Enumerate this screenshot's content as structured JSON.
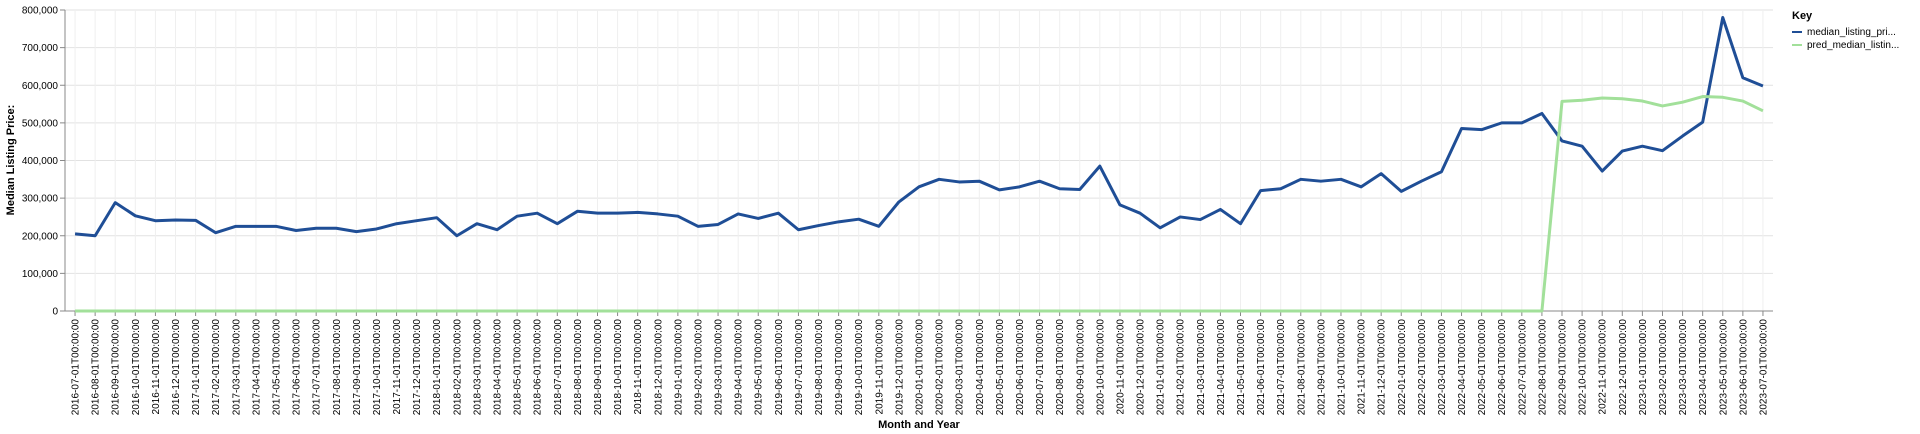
{
  "chart_data": {
    "type": "line",
    "xlabel": "Month and Year",
    "ylabel": "Median Listing Price:",
    "ylim": [
      0,
      800000
    ],
    "yticks": [
      "0",
      "100,000",
      "200,000",
      "300,000",
      "400,000",
      "500,000",
      "600,000",
      "700,000",
      "800,000"
    ],
    "grid": true,
    "legend": {
      "title": "Key",
      "placement": "right",
      "entries": [
        "median_listing_pri...",
        "pred_median_listin..."
      ]
    },
    "x": [
      "2016-07-01T00:00:00",
      "2016-08-01T00:00:00",
      "2016-09-01T00:00:00",
      "2016-10-01T00:00:00",
      "2016-11-01T00:00:00",
      "2016-12-01T00:00:00",
      "2017-01-01T00:00:00",
      "2017-02-01T00:00:00",
      "2017-03-01T00:00:00",
      "2017-04-01T00:00:00",
      "2017-05-01T00:00:00",
      "2017-06-01T00:00:00",
      "2017-07-01T00:00:00",
      "2017-08-01T00:00:00",
      "2017-09-01T00:00:00",
      "2017-10-01T00:00:00",
      "2017-11-01T00:00:00",
      "2017-12-01T00:00:00",
      "2018-01-01T00:00:00",
      "2018-02-01T00:00:00",
      "2018-03-01T00:00:00",
      "2018-04-01T00:00:00",
      "2018-05-01T00:00:00",
      "2018-06-01T00:00:00",
      "2018-07-01T00:00:00",
      "2018-08-01T00:00:00",
      "2018-09-01T00:00:00",
      "2018-10-01T00:00:00",
      "2018-11-01T00:00:00",
      "2018-12-01T00:00:00",
      "2019-01-01T00:00:00",
      "2019-02-01T00:00:00",
      "2019-03-01T00:00:00",
      "2019-04-01T00:00:00",
      "2019-05-01T00:00:00",
      "2019-06-01T00:00:00",
      "2019-07-01T00:00:00",
      "2019-08-01T00:00:00",
      "2019-09-01T00:00:00",
      "2019-10-01T00:00:00",
      "2019-11-01T00:00:00",
      "2019-12-01T00:00:00",
      "2020-01-01T00:00:00",
      "2020-02-01T00:00:00",
      "2020-03-01T00:00:00",
      "2020-04-01T00:00:00",
      "2020-05-01T00:00:00",
      "2020-06-01T00:00:00",
      "2020-07-01T00:00:00",
      "2020-08-01T00:00:00",
      "2020-09-01T00:00:00",
      "2020-10-01T00:00:00",
      "2020-11-01T00:00:00",
      "2020-12-01T00:00:00",
      "2021-01-01T00:00:00",
      "2021-02-01T00:00:00",
      "2021-03-01T00:00:00",
      "2021-04-01T00:00:00",
      "2021-05-01T00:00:00",
      "2021-06-01T00:00:00",
      "2021-07-01T00:00:00",
      "2021-08-01T00:00:00",
      "2021-09-01T00:00:00",
      "2021-10-01T00:00:00",
      "2021-11-01T00:00:00",
      "2021-12-01T00:00:00",
      "2022-01-01T00:00:00",
      "2022-02-01T00:00:00",
      "2022-03-01T00:00:00",
      "2022-04-01T00:00:00",
      "2022-05-01T00:00:00",
      "2022-06-01T00:00:00",
      "2022-07-01T00:00:00",
      "2022-08-01T00:00:00",
      "2022-09-01T00:00:00",
      "2022-10-01T00:00:00",
      "2022-11-01T00:00:00",
      "2022-12-01T00:00:00",
      "2023-01-01T00:00:00",
      "2023-02-01T00:00:00",
      "2023-03-01T00:00:00",
      "2023-04-01T00:00:00",
      "2023-05-01T00:00:00",
      "2023-06-01T00:00:00",
      "2023-07-01T00:00:00"
    ],
    "series": [
      {
        "name": "median_listing_pri...",
        "color": "#1f4e96",
        "values": [
          205000,
          200000,
          288000,
          253000,
          240000,
          242000,
          241000,
          208000,
          225000,
          225000,
          225000,
          214000,
          220000,
          220000,
          211000,
          218000,
          232000,
          240000,
          248000,
          200000,
          232000,
          216000,
          252000,
          260000,
          232000,
          265000,
          260000,
          260000,
          262000,
          258000,
          252000,
          225000,
          230000,
          258000,
          246000,
          260000,
          216000,
          227000,
          237000,
          244000,
          225000,
          290000,
          330000,
          350000,
          343000,
          345000,
          322000,
          330000,
          345000,
          325000,
          323000,
          385000,
          282000,
          260000,
          221000,
          250000,
          243000,
          270000,
          232000,
          320000,
          325000,
          350000,
          345000,
          350000,
          330000,
          365000,
          318000,
          345000,
          370000,
          485000,
          482000,
          500000,
          500000,
          525000,
          452000,
          438000,
          372000,
          425000,
          438000,
          426000,
          465000,
          502000,
          780000,
          620000,
          598000
        ]
      },
      {
        "name": "pred_median_listin...",
        "color": "#a2e09a",
        "values": [
          0,
          0,
          0,
          0,
          0,
          0,
          0,
          0,
          0,
          0,
          0,
          0,
          0,
          0,
          0,
          0,
          0,
          0,
          0,
          0,
          0,
          0,
          0,
          0,
          0,
          0,
          0,
          0,
          0,
          0,
          0,
          0,
          0,
          0,
          0,
          0,
          0,
          0,
          0,
          0,
          0,
          0,
          0,
          0,
          0,
          0,
          0,
          0,
          0,
          0,
          0,
          0,
          0,
          0,
          0,
          0,
          0,
          0,
          0,
          0,
          0,
          0,
          0,
          0,
          0,
          0,
          0,
          0,
          0,
          0,
          0,
          0,
          0,
          0,
          557000,
          560000,
          566000,
          564000,
          558000,
          545000,
          555000,
          570000,
          568000,
          558000,
          532000
        ]
      }
    ]
  }
}
